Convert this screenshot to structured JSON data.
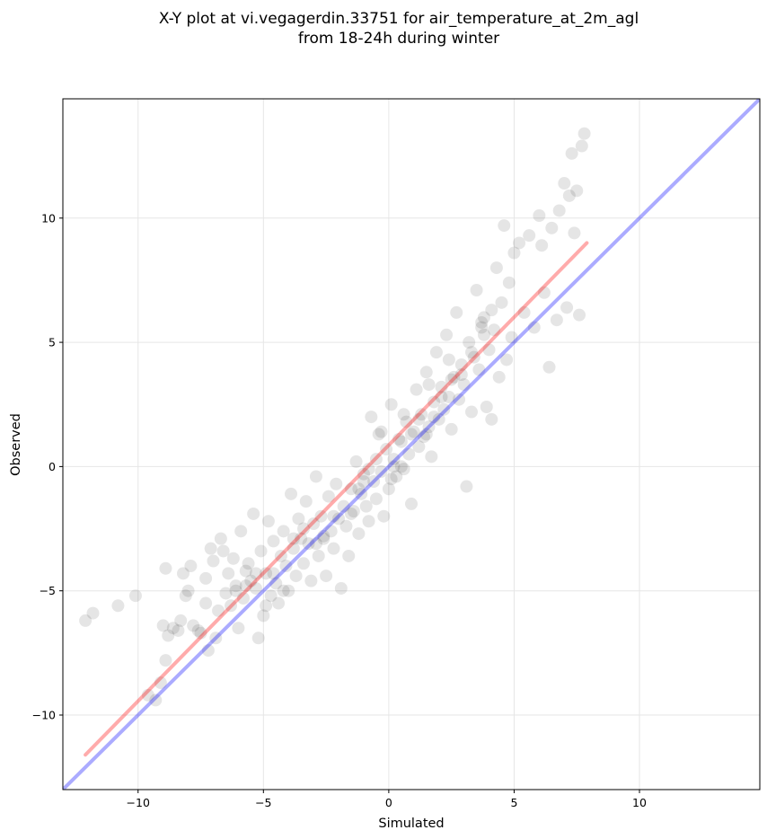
{
  "chart_data": {
    "type": "scatter",
    "title_lines": [
      "X-Y plot at vi.vegagerdin.33751 for air_temperature_at_2m_agl",
      "from 18-24h during winter"
    ],
    "xlabel": "Simulated",
    "ylabel": "Observed",
    "xlim": [
      -13,
      14.8
    ],
    "ylim": [
      -13,
      14.8
    ],
    "xticks": [
      -10,
      -5,
      0,
      5,
      10
    ],
    "yticks": [
      -10,
      -5,
      0,
      5,
      10
    ],
    "xtick_labels": [
      "−10",
      "−5",
      "0",
      "5",
      "10"
    ],
    "ytick_labels": [
      "−10",
      "−5",
      "0",
      "5",
      "10"
    ],
    "grid": true,
    "point_color": "#000000",
    "point_opacity": 0.1,
    "lines": [
      {
        "role": "identity",
        "color": "#0000ff",
        "opacity": 0.33,
        "x": [
          -13,
          14.8
        ],
        "y": [
          -13,
          14.8
        ]
      },
      {
        "role": "fit",
        "color": "#ff0000",
        "opacity": 0.33,
        "x": [
          -12.1,
          7.9
        ],
        "y": [
          -11.6,
          9.0
        ]
      }
    ],
    "points": [
      [
        -12.1,
        -6.2
      ],
      [
        -11.8,
        -5.9
      ],
      [
        -10.8,
        -5.6
      ],
      [
        -10.1,
        -5.2
      ],
      [
        -9.6,
        -9.2
      ],
      [
        -9.3,
        -9.4
      ],
      [
        -9.1,
        -8.7
      ],
      [
        -9.0,
        -6.4
      ],
      [
        -8.9,
        -4.1
      ],
      [
        -8.9,
        -7.8
      ],
      [
        -8.8,
        -6.8
      ],
      [
        -8.6,
        -6.5
      ],
      [
        -8.4,
        -6.6
      ],
      [
        -8.3,
        -6.2
      ],
      [
        -8.2,
        -4.3
      ],
      [
        -8.1,
        -5.2
      ],
      [
        -8.0,
        -5.0
      ],
      [
        -7.8,
        -6.4
      ],
      [
        -7.6,
        -6.6
      ],
      [
        -7.5,
        -6.7
      ],
      [
        -7.3,
        -4.5
      ],
      [
        -7.3,
        -5.5
      ],
      [
        -7.2,
        -7.4
      ],
      [
        -7.1,
        -3.3
      ],
      [
        -7.0,
        -3.8
      ],
      [
        -6.9,
        -6.9
      ],
      [
        -6.8,
        -5.8
      ],
      [
        -6.7,
        -2.9
      ],
      [
        -6.6,
        -3.4
      ],
      [
        -6.4,
        -4.3
      ],
      [
        -6.3,
        -5.6
      ],
      [
        -6.2,
        -3.7
      ],
      [
        -6.1,
        -4.8
      ],
      [
        -6.0,
        -6.5
      ],
      [
        -5.9,
        -2.6
      ],
      [
        -5.8,
        -5.3
      ],
      [
        -5.7,
        -4.2
      ],
      [
        -5.6,
        -3.9
      ],
      [
        -5.5,
        -4.6
      ],
      [
        -5.4,
        -1.9
      ],
      [
        -5.3,
        -4.9
      ],
      [
        -5.2,
        -6.9
      ],
      [
        -5.1,
        -3.4
      ],
      [
        -5.0,
        -6.0
      ],
      [
        -4.9,
        -4.3
      ],
      [
        -4.8,
        -2.2
      ],
      [
        -4.7,
        -5.2
      ],
      [
        -4.6,
        -3.0
      ],
      [
        -4.5,
        -4.7
      ],
      [
        -4.4,
        -5.5
      ],
      [
        -4.3,
        -3.6
      ],
      [
        -4.2,
        -2.6
      ],
      [
        -4.1,
        -4.0
      ],
      [
        -4.0,
        -5.0
      ],
      [
        -3.9,
        -1.1
      ],
      [
        -3.8,
        -3.3
      ],
      [
        -3.7,
        -4.4
      ],
      [
        -3.6,
        -2.1
      ],
      [
        -3.5,
        -2.9
      ],
      [
        -3.4,
        -3.9
      ],
      [
        -3.3,
        -1.4
      ],
      [
        -3.2,
        -3.1
      ],
      [
        -3.1,
        -4.6
      ],
      [
        -3.0,
        -2.3
      ],
      [
        -2.9,
        -0.4
      ],
      [
        -2.8,
        -3.6
      ],
      [
        -2.7,
        -2.0
      ],
      [
        -2.6,
        -2.8
      ],
      [
        -2.5,
        -4.4
      ],
      [
        -2.4,
        -1.2
      ],
      [
        -2.3,
        -2.6
      ],
      [
        -2.2,
        -3.3
      ],
      [
        -2.1,
        -0.7
      ],
      [
        -2.0,
        -2.1
      ],
      [
        -1.9,
        -4.9
      ],
      [
        -1.8,
        -1.6
      ],
      [
        -1.7,
        -2.4
      ],
      [
        -1.6,
        -3.6
      ],
      [
        -1.5,
        -0.9
      ],
      [
        -1.4,
        -1.8
      ],
      [
        -1.3,
        0.2
      ],
      [
        -1.2,
        -2.7
      ],
      [
        -1.1,
        -1.1
      ],
      [
        -1.0,
        -0.3
      ],
      [
        -0.9,
        -1.6
      ],
      [
        -0.8,
        -2.2
      ],
      [
        -0.7,
        2.0
      ],
      [
        -0.6,
        -0.6
      ],
      [
        -0.5,
        -1.3
      ],
      [
        -0.4,
        1.3
      ],
      [
        -0.3,
        -0.2
      ],
      [
        -0.2,
        -2.0
      ],
      [
        -0.1,
        0.7
      ],
      [
        0.0,
        -0.9
      ],
      [
        0.1,
        2.5
      ],
      [
        0.2,
        0.3
      ],
      [
        0.3,
        -0.4
      ],
      [
        0.4,
        1.1
      ],
      [
        0.5,
        0.0
      ],
      [
        0.6,
        -0.1
      ],
      [
        0.7,
        1.8
      ],
      [
        0.8,
        0.5
      ],
      [
        0.9,
        -1.5
      ],
      [
        1.0,
        1.4
      ],
      [
        1.1,
        3.1
      ],
      [
        1.2,
        0.8
      ],
      [
        1.3,
        2.1
      ],
      [
        1.4,
        1.2
      ],
      [
        1.5,
        3.8
      ],
      [
        1.6,
        1.6
      ],
      [
        1.7,
        0.4
      ],
      [
        1.8,
        2.6
      ],
      [
        1.9,
        4.6
      ],
      [
        2.0,
        1.9
      ],
      [
        2.1,
        3.2
      ],
      [
        2.2,
        2.3
      ],
      [
        2.3,
        5.3
      ],
      [
        2.4,
        2.8
      ],
      [
        2.5,
        1.5
      ],
      [
        2.6,
        3.6
      ],
      [
        2.7,
        6.2
      ],
      [
        2.8,
        2.7
      ],
      [
        2.9,
        4.1
      ],
      [
        3.0,
        3.3
      ],
      [
        3.1,
        -0.8
      ],
      [
        3.2,
        5.0
      ],
      [
        3.3,
        2.2
      ],
      [
        3.4,
        4.4
      ],
      [
        3.5,
        7.1
      ],
      [
        3.6,
        3.9
      ],
      [
        3.7,
        5.6
      ],
      [
        3.8,
        6.0
      ],
      [
        3.9,
        2.4
      ],
      [
        4.0,
        4.7
      ],
      [
        4.1,
        1.9
      ],
      [
        4.2,
        5.5
      ],
      [
        4.3,
        8.0
      ],
      [
        4.4,
        3.6
      ],
      [
        4.5,
        6.6
      ],
      [
        4.6,
        9.7
      ],
      [
        4.7,
        4.3
      ],
      [
        4.8,
        7.4
      ],
      [
        4.9,
        5.2
      ],
      [
        5.0,
        8.6
      ],
      [
        5.2,
        9.0
      ],
      [
        5.4,
        6.2
      ],
      [
        5.6,
        9.3
      ],
      [
        5.8,
        5.6
      ],
      [
        6.0,
        10.1
      ],
      [
        6.1,
        8.9
      ],
      [
        6.2,
        7.0
      ],
      [
        6.4,
        4.0
      ],
      [
        6.5,
        9.6
      ],
      [
        6.7,
        5.9
      ],
      [
        6.8,
        10.3
      ],
      [
        7.0,
        11.4
      ],
      [
        7.1,
        6.4
      ],
      [
        7.2,
        10.9
      ],
      [
        7.3,
        12.6
      ],
      [
        7.4,
        9.4
      ],
      [
        7.5,
        11.1
      ],
      [
        7.6,
        6.1
      ],
      [
        7.7,
        12.9
      ],
      [
        7.8,
        13.4
      ],
      [
        -7.9,
        -4.0
      ],
      [
        -6.5,
        -5.1
      ],
      [
        -5.7,
        -4.8
      ],
      [
        -4.9,
        -5.6
      ],
      [
        -4.6,
        -4.3
      ],
      [
        -4.2,
        -5.0
      ],
      [
        -3.4,
        -2.5
      ],
      [
        -2.9,
        -3.1
      ],
      [
        -2.2,
        -2.0
      ],
      [
        -1.5,
        -1.9
      ],
      [
        -1.0,
        -0.6
      ],
      [
        -0.5,
        0.3
      ],
      [
        0.2,
        0.0
      ],
      [
        0.5,
        1.0
      ],
      [
        0.9,
        1.3
      ],
      [
        1.2,
        1.9
      ],
      [
        1.5,
        1.3
      ],
      [
        1.8,
        2.0
      ],
      [
        2.1,
        2.8
      ],
      [
        2.5,
        3.5
      ],
      [
        2.9,
        3.7
      ],
      [
        3.3,
        4.6
      ],
      [
        3.7,
        5.8
      ],
      [
        4.1,
        6.3
      ],
      [
        -0.3,
        1.4
      ],
      [
        -1.2,
        -0.9
      ],
      [
        -2.6,
        -2.9
      ],
      [
        -3.8,
        -2.9
      ],
      [
        -5.3,
        -4.3
      ],
      [
        -6.1,
        -5.0
      ],
      [
        0.1,
        -0.5
      ],
      [
        1.6,
        3.3
      ],
      [
        0.6,
        2.1
      ],
      [
        -0.8,
        -0.1
      ],
      [
        2.4,
        4.3
      ],
      [
        3.8,
        5.3
      ]
    ]
  }
}
